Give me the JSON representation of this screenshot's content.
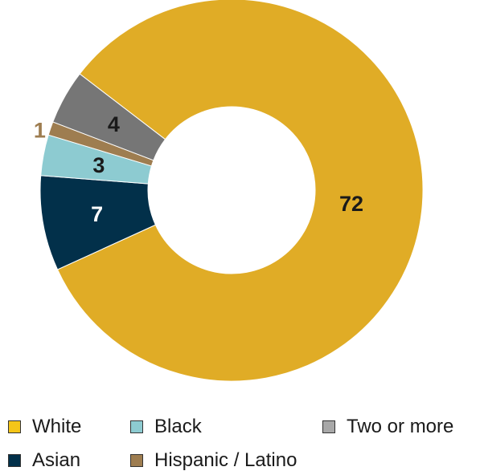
{
  "chart_data": {
    "type": "pie",
    "categories": [
      "White",
      "Asian",
      "Black",
      "Hispanic / Latino",
      "Two or more"
    ],
    "values": [
      72,
      7,
      3,
      1,
      4
    ],
    "labels": [
      "72",
      "7",
      "3",
      "1",
      "4"
    ],
    "colors": [
      "#E0AC26",
      "#02304A",
      "#8DCBD1",
      "#9E7D50",
      "#767676"
    ],
    "label_colors": [
      "#1A1A1A",
      "#FFFFFF",
      "#1A1A1A",
      "#9E7D50",
      "#1A1A1A"
    ],
    "donut": true,
    "legend_position": "bottom"
  },
  "legend": [
    {
      "label": "White",
      "color": "#F5C518"
    },
    {
      "label": "Black",
      "color": "#8DCBD1"
    },
    {
      "label": "Two or more",
      "color": "#A8A8A8"
    },
    {
      "label": "Asian",
      "color": "#02304A"
    },
    {
      "label": "Hispanic / Latino",
      "color": "#9E7D50"
    }
  ]
}
